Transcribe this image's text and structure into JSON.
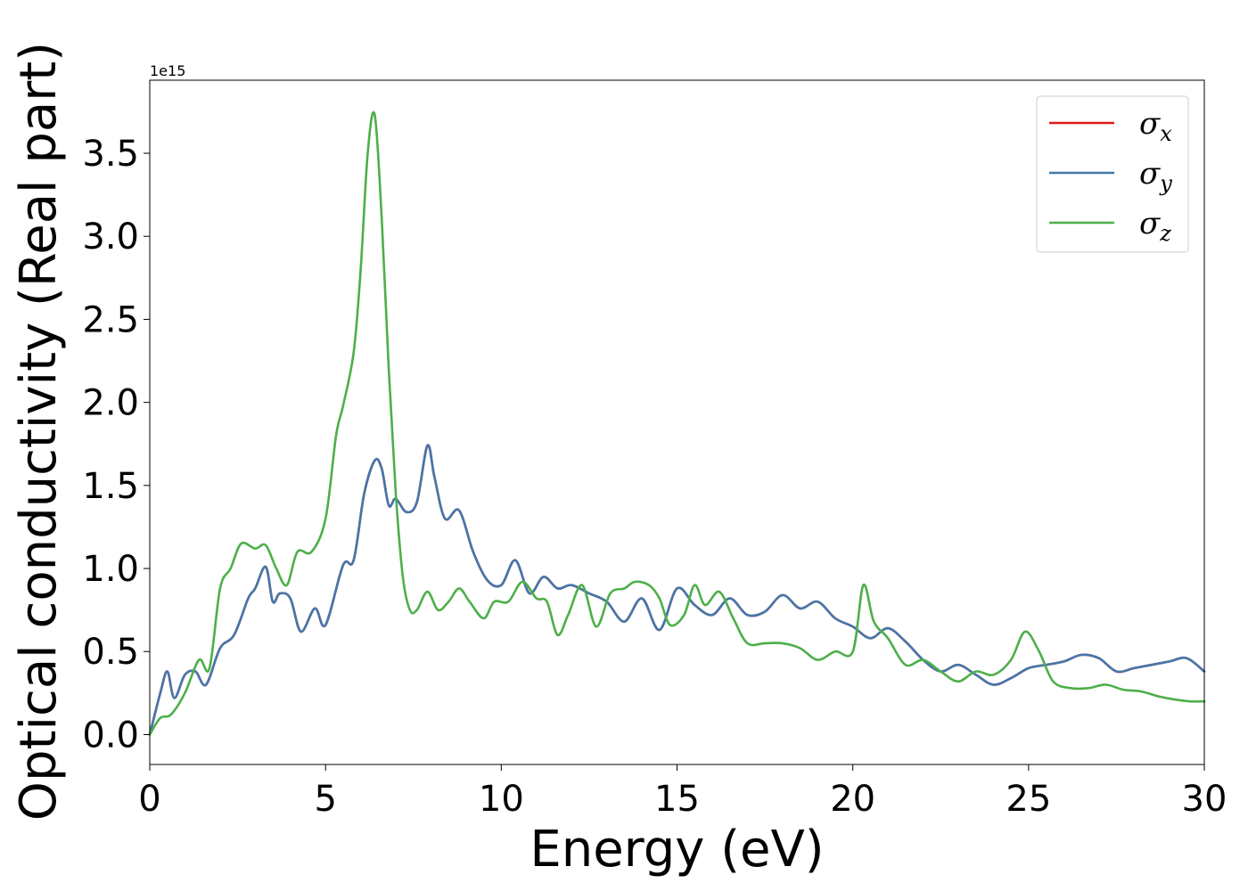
{
  "chart_data": {
    "type": "line",
    "title": "",
    "xlabel": "Energy (eV)",
    "ylabel": "Optical conductivity (Real part)",
    "y_offset_label": "1e15",
    "xlim": [
      0,
      30
    ],
    "ylim": [
      -0.18,
      3.94
    ],
    "grid": false,
    "legend_position": "top-right",
    "xticks": [
      0,
      5,
      10,
      15,
      20,
      25,
      30
    ],
    "xtick_labels": [
      "0",
      "5",
      "10",
      "15",
      "20",
      "25",
      "30"
    ],
    "yticks": [
      0.0,
      0.5,
      1.0,
      1.5,
      2.0,
      2.5,
      3.0,
      3.5
    ],
    "ytick_labels": [
      "0.0",
      "0.5",
      "1.0",
      "1.5",
      "2.0",
      "2.5",
      "3.0",
      "3.5"
    ],
    "series": [
      {
        "name": "σx",
        "name_base": "σ",
        "name_sub": "x",
        "color": "#e41a1c",
        "x": [
          0,
          0.3,
          0.5,
          0.7,
          1.0,
          1.3,
          1.6,
          2.0,
          2.4,
          2.8,
          3.0,
          3.3,
          3.5,
          3.7,
          4.0,
          4.3,
          4.7,
          5.0,
          5.5,
          5.8,
          6.1,
          6.4,
          6.6,
          6.8,
          7.0,
          7.3,
          7.6,
          7.9,
          8.1,
          8.4,
          8.8,
          9.2,
          9.6,
          10.0,
          10.4,
          10.8,
          11.2,
          11.6,
          12.0,
          12.5,
          13.0,
          13.5,
          14.0,
          14.5,
          15.0,
          15.5,
          16.0,
          16.5,
          17.0,
          17.5,
          18.0,
          18.5,
          19.0,
          19.5,
          20.0,
          20.5,
          21.0,
          21.5,
          22.0,
          22.5,
          23.0,
          23.5,
          24.0,
          24.5,
          25.0,
          25.5,
          26.0,
          26.5,
          27.0,
          27.5,
          28.0,
          28.5,
          29.0,
          29.5,
          30.0
        ],
        "y": [
          0.0,
          0.25,
          0.38,
          0.22,
          0.36,
          0.38,
          0.3,
          0.52,
          0.6,
          0.82,
          0.88,
          1.01,
          0.8,
          0.85,
          0.82,
          0.62,
          0.76,
          0.66,
          1.02,
          1.05,
          1.45,
          1.65,
          1.6,
          1.38,
          1.42,
          1.34,
          1.4,
          1.74,
          1.55,
          1.3,
          1.35,
          1.1,
          0.93,
          0.9,
          1.05,
          0.85,
          0.95,
          0.88,
          0.9,
          0.85,
          0.8,
          0.68,
          0.82,
          0.63,
          0.88,
          0.78,
          0.72,
          0.82,
          0.72,
          0.74,
          0.84,
          0.76,
          0.8,
          0.7,
          0.65,
          0.58,
          0.64,
          0.56,
          0.45,
          0.38,
          0.42,
          0.36,
          0.3,
          0.34,
          0.4,
          0.42,
          0.44,
          0.48,
          0.46,
          0.38,
          0.4,
          0.42,
          0.44,
          0.46,
          0.38
        ]
      },
      {
        "name": "σy",
        "name_base": "σ",
        "name_sub": "y",
        "color": "#4477aa",
        "x": [
          0,
          0.3,
          0.5,
          0.7,
          1.0,
          1.3,
          1.6,
          2.0,
          2.4,
          2.8,
          3.0,
          3.3,
          3.5,
          3.7,
          4.0,
          4.3,
          4.7,
          5.0,
          5.5,
          5.8,
          6.1,
          6.4,
          6.6,
          6.8,
          7.0,
          7.3,
          7.6,
          7.9,
          8.1,
          8.4,
          8.8,
          9.2,
          9.6,
          10.0,
          10.4,
          10.8,
          11.2,
          11.6,
          12.0,
          12.5,
          13.0,
          13.5,
          14.0,
          14.5,
          15.0,
          15.5,
          16.0,
          16.5,
          17.0,
          17.5,
          18.0,
          18.5,
          19.0,
          19.5,
          20.0,
          20.5,
          21.0,
          21.5,
          22.0,
          22.5,
          23.0,
          23.5,
          24.0,
          24.5,
          25.0,
          25.5,
          26.0,
          26.5,
          27.0,
          27.5,
          28.0,
          28.5,
          29.0,
          29.5,
          30.0
        ],
        "y": [
          0.0,
          0.25,
          0.38,
          0.22,
          0.36,
          0.38,
          0.3,
          0.52,
          0.6,
          0.82,
          0.88,
          1.01,
          0.8,
          0.85,
          0.82,
          0.62,
          0.76,
          0.66,
          1.02,
          1.05,
          1.45,
          1.65,
          1.6,
          1.38,
          1.42,
          1.34,
          1.4,
          1.74,
          1.55,
          1.3,
          1.35,
          1.1,
          0.93,
          0.9,
          1.05,
          0.85,
          0.95,
          0.88,
          0.9,
          0.85,
          0.8,
          0.68,
          0.82,
          0.63,
          0.88,
          0.78,
          0.72,
          0.82,
          0.72,
          0.74,
          0.84,
          0.76,
          0.8,
          0.7,
          0.65,
          0.58,
          0.64,
          0.56,
          0.45,
          0.38,
          0.42,
          0.36,
          0.3,
          0.34,
          0.4,
          0.42,
          0.44,
          0.48,
          0.46,
          0.38,
          0.4,
          0.42,
          0.44,
          0.46,
          0.38
        ]
      },
      {
        "name": "σz",
        "name_base": "σ",
        "name_sub": "z",
        "color": "#4daf4a",
        "x": [
          0,
          0.3,
          0.6,
          1.0,
          1.4,
          1.7,
          2.0,
          2.3,
          2.6,
          3.0,
          3.3,
          3.6,
          3.9,
          4.2,
          4.6,
          5.0,
          5.3,
          5.5,
          5.8,
          6.0,
          6.2,
          6.4,
          6.6,
          6.8,
          7.0,
          7.2,
          7.4,
          7.6,
          7.9,
          8.2,
          8.5,
          8.8,
          9.1,
          9.5,
          9.8,
          10.2,
          10.6,
          11.0,
          11.3,
          11.6,
          11.9,
          12.3,
          12.7,
          13.1,
          13.5,
          13.8,
          14.2,
          14.5,
          14.8,
          15.2,
          15.5,
          15.8,
          16.2,
          16.6,
          17.0,
          17.5,
          18.0,
          18.5,
          19.0,
          19.5,
          20.0,
          20.3,
          20.6,
          21.0,
          21.5,
          22.0,
          22.5,
          23.0,
          23.5,
          24.0,
          24.5,
          24.9,
          25.3,
          25.7,
          26.2,
          26.7,
          27.2,
          27.7,
          28.2,
          28.7,
          29.2,
          29.6,
          30.0
        ],
        "y": [
          0.0,
          0.1,
          0.12,
          0.25,
          0.45,
          0.4,
          0.88,
          1.0,
          1.15,
          1.12,
          1.14,
          1.0,
          0.9,
          1.1,
          1.1,
          1.3,
          1.8,
          1.98,
          2.3,
          2.8,
          3.5,
          3.73,
          3.1,
          2.2,
          1.45,
          0.95,
          0.75,
          0.75,
          0.86,
          0.75,
          0.8,
          0.88,
          0.8,
          0.7,
          0.8,
          0.8,
          0.92,
          0.82,
          0.8,
          0.6,
          0.72,
          0.9,
          0.65,
          0.85,
          0.88,
          0.92,
          0.9,
          0.82,
          0.66,
          0.72,
          0.9,
          0.78,
          0.86,
          0.7,
          0.55,
          0.55,
          0.55,
          0.52,
          0.45,
          0.5,
          0.5,
          0.9,
          0.68,
          0.58,
          0.42,
          0.45,
          0.38,
          0.32,
          0.38,
          0.36,
          0.45,
          0.62,
          0.5,
          0.32,
          0.28,
          0.28,
          0.3,
          0.27,
          0.26,
          0.23,
          0.21,
          0.2,
          0.2
        ]
      }
    ]
  }
}
